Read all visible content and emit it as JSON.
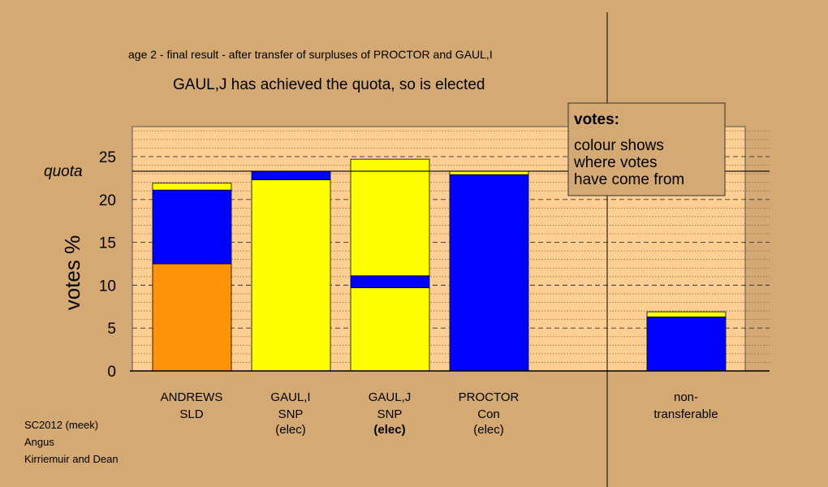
{
  "chart_data": {
    "type": "bar",
    "stacked": true,
    "title": "age 2 - final result - after transfer of surpluses of PROCTOR and GAUL,I",
    "subtitle": "GAUL,J has achieved the quota, so is elected",
    "ylabel": "votes %",
    "ylim": [
      0,
      28.5
    ],
    "yticks": [
      0,
      5,
      10,
      15,
      20,
      25
    ],
    "minor_grid_step": 1,
    "quota": 23.3,
    "quota_label": "quota",
    "colors": {
      "SLD": "#ff9408",
      "Con": "#0000ff",
      "SNP": "#ffff00"
    },
    "candidates": [
      {
        "name": "ANDREWS",
        "party": "SLD",
        "status": "",
        "segments": [
          {
            "from": "SLD",
            "value": 12.5
          },
          {
            "from": "Con",
            "value": 8.6
          },
          {
            "from": "SNP",
            "value": 0.8
          }
        ]
      },
      {
        "name": "GAUL,I",
        "party": "SNP",
        "status": "(elec)",
        "status_bold": false,
        "segments": [
          {
            "from": "SNP",
            "value": 22.3
          },
          {
            "from": "Con",
            "value": 1.0
          }
        ]
      },
      {
        "name": "GAUL,J",
        "party": "SNP",
        "status": "(elec)",
        "status_bold": true,
        "segments": [
          {
            "from": "SNP",
            "value": 9.7
          },
          {
            "from": "Con",
            "value": 1.4
          },
          {
            "from": "SNP",
            "value": 13.6
          }
        ]
      },
      {
        "name": "PROCTOR",
        "party": "Con",
        "status": "(elec)",
        "status_bold": false,
        "segments": [
          {
            "from": "Con",
            "value": 22.9
          },
          {
            "from": "SNP",
            "value": 0.4
          }
        ]
      }
    ],
    "nontransferable": {
      "label_line1": "non-",
      "label_line2": "transferable",
      "segments": [
        {
          "from": "Con",
          "value": 6.3
        },
        {
          "from": "SNP",
          "value": 0.6
        }
      ]
    },
    "legend": {
      "title": "votes:",
      "lines": [
        "colour shows",
        "where votes",
        "have come from"
      ],
      "placement": "top-right"
    }
  },
  "footer": {
    "line1": "SC2012 (meek)",
    "line2": "Angus",
    "line3": "Kirriemuir and Dean"
  }
}
